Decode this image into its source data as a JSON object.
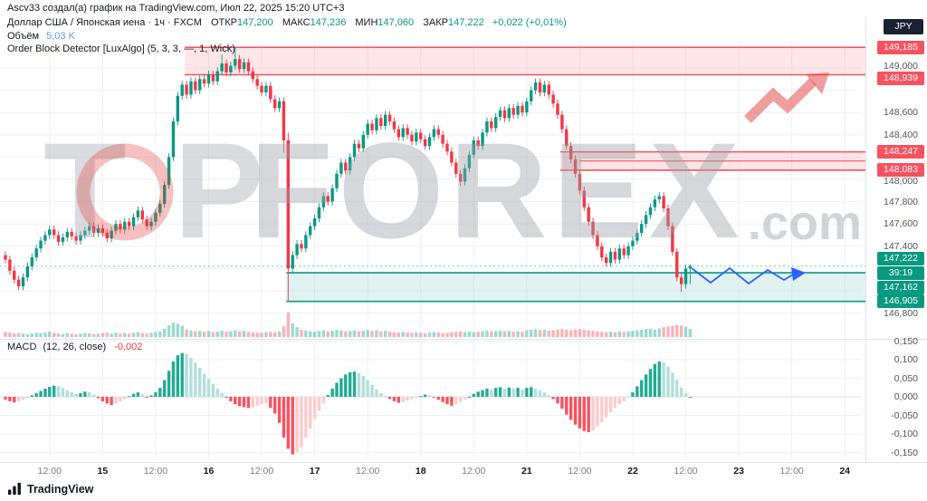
{
  "meta": {
    "attribution": "Ascv33 создал(а) график на TradingView.com, Июл 22, 2025 15:20 UTC+3"
  },
  "header": {
    "symbol": "Доллар США / Японская иена · 1ч · FXCM",
    "ohlc": [
      {
        "label": "ОТКР",
        "value": "147,200"
      },
      {
        "label": "МАКС",
        "value": "147,236"
      },
      {
        "label": "МИН",
        "value": "147,060"
      },
      {
        "label": "ЗАКР",
        "value": "147,222"
      }
    ],
    "change": "+0,022 (+0,01%)",
    "volume_label": "Объём",
    "volume_value": "5,03 K",
    "indicator_label": "Order Block Detector [LuxAlgo] (5, 3, 3, —, 1, Wick)"
  },
  "macd_legend": {
    "name": "MACD",
    "params": "(12, 26, close)",
    "value": "-0,002"
  },
  "axis": {
    "currency": "JPY",
    "ticks": [
      {
        "label": "149,000",
        "price": 149.0,
        "dy": -2
      },
      {
        "label": "148,600",
        "price": 148.6
      },
      {
        "label": "148,400",
        "price": 148.4
      },
      {
        "label": "148,000",
        "price": 148.0,
        "dy": 2
      },
      {
        "label": "147,800",
        "price": 147.8
      },
      {
        "label": "147,600",
        "price": 147.6
      },
      {
        "label": "147,400",
        "price": 147.4
      },
      {
        "label": "146,800",
        "price": 146.8
      }
    ],
    "labels": [
      {
        "label": "149,185",
        "price": 149.185,
        "bg": "#f7525f"
      },
      {
        "label": "148,939",
        "price": 148.939,
        "bg": "#f7525f",
        "dy": 4
      },
      {
        "label": "148,247",
        "price": 148.247,
        "bg": "#f7525f"
      },
      {
        "label": "148,083",
        "price": 148.083,
        "bg": "#f7525f"
      },
      {
        "label": "147,222",
        "price": 147.222,
        "bg": "#089981",
        "dy": -8
      },
      {
        "label": "39:19",
        "price": 147.222,
        "bg": "#089981",
        "dy": 8,
        "timer": true
      },
      {
        "label": "147,162",
        "price": 147.162,
        "bg": "#089981",
        "dy": 16
      },
      {
        "label": "146,905",
        "price": 146.905,
        "bg": "#089981"
      }
    ],
    "macd_ticks": [
      {
        "label": "0,150",
        "value": 0.15
      },
      {
        "label": "0,100",
        "value": 0.1
      },
      {
        "label": "0,050",
        "value": 0.05
      },
      {
        "label": "0,000",
        "value": 0.0
      },
      {
        "label": "-0,050",
        "value": -0.05
      },
      {
        "label": "-0,100",
        "value": -0.1
      },
      {
        "label": "-0,150",
        "value": -0.15
      }
    ]
  },
  "time_axis": [
    {
      "label": "12:00",
      "i": 10
    },
    {
      "label": "15",
      "i": 22,
      "major": true
    },
    {
      "label": "12:00",
      "i": 34
    },
    {
      "label": "16",
      "i": 46,
      "major": true
    },
    {
      "label": "12:00",
      "i": 58
    },
    {
      "label": "17",
      "i": 70,
      "major": true
    },
    {
      "label": "12:00",
      "i": 82
    },
    {
      "label": "18",
      "i": 94,
      "major": true
    },
    {
      "label": "12:00",
      "i": 106
    },
    {
      "label": "21",
      "i": 118,
      "major": true
    },
    {
      "label": "12:00",
      "i": 130
    },
    {
      "label": "22",
      "i": 142,
      "major": true
    },
    {
      "label": "12:00",
      "i": 154
    },
    {
      "label": "23",
      "i": 166,
      "major": true
    },
    {
      "label": "12:00",
      "i": 178
    },
    {
      "label": "24",
      "i": 190,
      "major": true
    }
  ],
  "chart_data": {
    "type": "candlestick",
    "symbol": "USD/JPY (Доллар США / Японская иена)",
    "interval": "1h",
    "exchange": "FXCM",
    "current_bar": {
      "open": 147.2,
      "high": 147.236,
      "low": 147.06,
      "close": 147.222,
      "change": "+0,022 (+0,01%)",
      "volume_k": 5.03
    },
    "ylim": [
      146.8,
      149.24
    ],
    "macd_ylim": [
      -0.155,
      0.15
    ],
    "first_open": 147.32,
    "default_wick": 0.035,
    "closes": [
      147.28,
      147.18,
      147.1,
      147.04,
      147.12,
      147.22,
      147.3,
      147.38,
      147.45,
      147.5,
      147.55,
      147.5,
      147.44,
      147.48,
      147.53,
      147.49,
      147.45,
      147.5,
      147.54,
      147.58,
      147.52,
      147.56,
      147.52,
      147.47,
      147.54,
      147.6,
      147.55,
      147.62,
      147.58,
      147.66,
      147.72,
      147.64,
      147.58,
      147.62,
      147.7,
      147.78,
      147.95,
      148.2,
      148.52,
      148.75,
      148.85,
      148.76,
      148.88,
      148.8,
      148.9,
      148.86,
      148.94,
      148.88,
      148.97,
      149.04,
      148.96,
      149.02,
      149.08,
      148.99,
      149.05,
      148.97,
      148.9,
      148.84,
      148.78,
      148.84,
      148.72,
      148.64,
      148.7,
      148.35,
      147.2,
      147.32,
      147.42,
      147.38,
      147.5,
      147.58,
      147.65,
      147.75,
      147.85,
      147.8,
      147.92,
      148.05,
      148.15,
      148.08,
      148.2,
      148.32,
      148.28,
      148.4,
      148.5,
      148.44,
      148.55,
      148.48,
      148.58,
      148.52,
      148.45,
      148.38,
      148.46,
      148.4,
      148.34,
      148.42,
      148.36,
      148.3,
      148.38,
      148.45,
      148.4,
      148.32,
      148.25,
      148.15,
      148.05,
      147.98,
      148.1,
      148.22,
      148.35,
      148.3,
      148.42,
      148.52,
      148.46,
      148.56,
      148.62,
      148.55,
      148.64,
      148.58,
      148.66,
      148.6,
      148.7,
      148.8,
      148.87,
      148.78,
      148.85,
      148.76,
      148.68,
      148.58,
      148.45,
      148.3,
      148.18,
      148.05,
      147.9,
      147.75,
      147.62,
      147.5,
      147.4,
      147.3,
      147.25,
      147.35,
      147.28,
      147.38,
      147.32,
      147.4,
      147.45,
      147.52,
      147.6,
      147.68,
      147.75,
      147.82,
      147.85,
      147.74,
      147.58,
      147.35,
      147.12,
      147.06,
      147.2,
      147.222
    ],
    "wick_overrides": {
      "49": {
        "h": 149.12
      },
      "52": {
        "h": 149.185
      },
      "63": {
        "l": 148.24
      },
      "64": {
        "l": 146.905,
        "h": 148.42
      },
      "153": {
        "l": 146.99
      },
      "154": {
        "l": 147.02
      },
      "155": {
        "o": 147.2,
        "h": 147.236,
        "l": 147.06,
        "c": 147.222
      }
    },
    "volume": [
      3.2,
      2.8,
      2.4,
      2.6,
      2.1,
      1.8,
      2.3,
      2.7,
      2.5,
      2.9,
      3.4,
      2.6,
      2.2,
      1.9,
      2.4,
      2.0,
      1.7,
      2.2,
      2.6,
      2.3,
      1.9,
      2.1,
      2.5,
      2.8,
      2.2,
      2.6,
      2.0,
      2.4,
      2.1,
      2.7,
      3.0,
      2.5,
      2.2,
      2.6,
      3.1,
      3.6,
      5.2,
      7.6,
      9.2,
      8.4,
      7.1,
      4.8,
      4.2,
      3.6,
      3.9,
      3.3,
      3.8,
      3.1,
      3.5,
      4.0,
      3.4,
      3.7,
      4.2,
      3.6,
      3.9,
      3.2,
      3.0,
      2.8,
      2.6,
      3.0,
      3.3,
      2.9,
      3.4,
      6.8,
      15.5,
      8.6,
      6.2,
      4.6,
      4.1,
      3.7,
      3.4,
      3.8,
      4.3,
      3.6,
      4.0,
      4.4,
      4.1,
      3.5,
      3.9,
      4.2,
      3.6,
      4.0,
      4.4,
      3.8,
      4.1,
      3.5,
      3.9,
      3.3,
      3.1,
      2.9,
      3.2,
      2.8,
      2.6,
      3.0,
      2.7,
      2.4,
      2.8,
      3.1,
      2.9,
      2.5,
      2.7,
      3.0,
      3.3,
      3.6,
      3.2,
      3.5,
      3.1,
      3.4,
      3.7,
      4.0,
      3.5,
      3.8,
      4.1,
      3.6,
      3.9,
      3.4,
      3.7,
      3.2,
      4.2,
      4.6,
      4.9,
      4.3,
      4.6,
      4.0,
      4.4,
      4.8,
      5.1,
      4.5,
      4.2,
      4.7,
      5.0,
      4.6,
      4.3,
      3.9,
      3.6,
      3.3,
      3.0,
      3.4,
      3.1,
      3.5,
      3.2,
      3.6,
      3.9,
      4.3,
      4.6,
      5.0,
      5.3,
      4.8,
      5.5,
      6.2,
      6.6,
      7.0,
      7.6,
      7.2,
      6.4,
      5.03
    ],
    "macd_hist": [
      -0.008,
      -0.012,
      -0.015,
      -0.012,
      -0.008,
      -0.004,
      0.004,
      0.01,
      0.016,
      0.022,
      0.027,
      0.03,
      0.028,
      0.024,
      0.018,
      0.012,
      0.008,
      0.01,
      0.014,
      0.012,
      0.006,
      -0.004,
      -0.012,
      -0.018,
      -0.022,
      -0.018,
      -0.012,
      -0.006,
      0.002,
      0.008,
      0.012,
      0.006,
      -0.002,
      0.004,
      0.012,
      0.024,
      0.045,
      0.07,
      0.095,
      0.112,
      0.118,
      0.115,
      0.105,
      0.092,
      0.078,
      0.062,
      0.048,
      0.035,
      0.022,
      0.01,
      -0.002,
      -0.012,
      -0.02,
      -0.025,
      -0.028,
      -0.03,
      -0.028,
      -0.024,
      -0.02,
      -0.018,
      -0.03,
      -0.045,
      -0.07,
      -0.11,
      -0.14,
      -0.155,
      -0.15,
      -0.135,
      -0.11,
      -0.085,
      -0.06,
      -0.038,
      -0.018,
      0.005,
      0.022,
      0.038,
      0.05,
      0.06,
      0.066,
      0.068,
      0.064,
      0.056,
      0.045,
      0.032,
      0.02,
      0.01,
      0.002,
      -0.006,
      -0.012,
      -0.016,
      -0.014,
      -0.01,
      -0.006,
      -0.002,
      0.002,
      0.006,
      0.004,
      -0.002,
      -0.008,
      -0.014,
      -0.02,
      -0.024,
      -0.02,
      -0.014,
      -0.008,
      0.0,
      0.008,
      0.014,
      0.018,
      0.022,
      0.02,
      0.024,
      0.026,
      0.022,
      0.025,
      0.022,
      0.024,
      0.02,
      0.024,
      0.026,
      0.022,
      0.018,
      0.012,
      0.004,
      -0.006,
      -0.018,
      -0.032,
      -0.048,
      -0.062,
      -0.075,
      -0.085,
      -0.092,
      -0.095,
      -0.09,
      -0.08,
      -0.068,
      -0.055,
      -0.042,
      -0.03,
      -0.02,
      -0.012,
      -0.002,
      0.012,
      0.028,
      0.045,
      0.06,
      0.075,
      0.088,
      0.095,
      0.092,
      0.082,
      0.065,
      0.045,
      0.025,
      0.01,
      -0.002
    ],
    "order_blocks": [
      {
        "side": "bear",
        "from_i": 41,
        "top": 149.185,
        "bottom": 148.939
      },
      {
        "side": "bear",
        "from_i": 126,
        "top": 148.247,
        "bottom": 148.083,
        "inner": 148.165,
        "inner_from_i": 130
      },
      {
        "side": "bull",
        "from_i": 64,
        "top": 147.162,
        "bottom": 146.905
      }
    ],
    "last_price": 147.222
  },
  "annotations": {
    "zigzag": [
      [
        764,
        296
      ],
      [
        785,
        312
      ],
      [
        806,
        296
      ],
      [
        827,
        313
      ],
      [
        848,
        298
      ],
      [
        866,
        309
      ],
      [
        876,
        303
      ]
    ]
  },
  "watermark": {
    "t": "T",
    "p": "P",
    "forex": "FOREX",
    "com": ".com"
  },
  "footer": {
    "brand": "TradingView"
  },
  "colors": {
    "up": "#089981",
    "down": "#f23645",
    "box_red": "#f7525f",
    "box_green": "#089981",
    "blue": "#2962ff",
    "macd_pos": "#22ab94",
    "macd_pos_weak": "#b2dfdb",
    "macd_neg": "#f7525f",
    "macd_neg_weak": "#fccbcd",
    "grid": "#eef1f6",
    "axis_text": "#50535e",
    "text": "#131722",
    "volume_value": "#5c9ce6"
  }
}
